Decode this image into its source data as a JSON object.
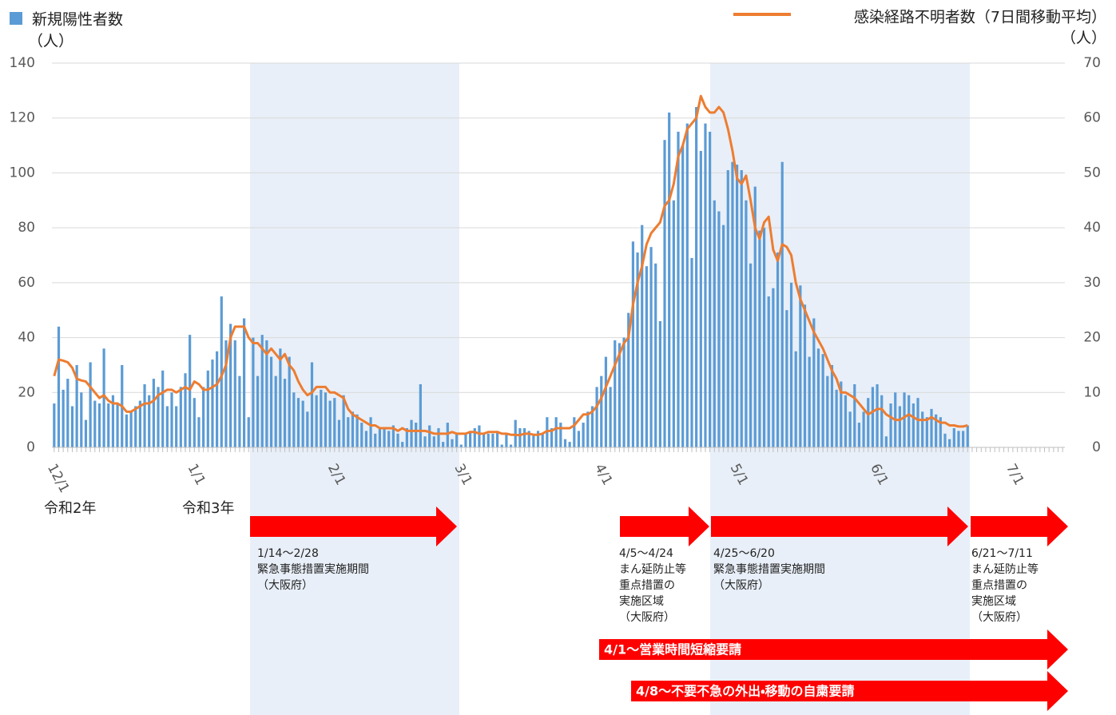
{
  "chart_data": {
    "type": "bar",
    "categories": [
      "12/1",
      null,
      null,
      null,
      null,
      null,
      null,
      null,
      null,
      null,
      null,
      null,
      null,
      null,
      null,
      null,
      null,
      null,
      null,
      null,
      null,
      null,
      null,
      null,
      null,
      null,
      null,
      null,
      null,
      null,
      null,
      "1/1",
      null,
      null,
      null,
      null,
      null,
      null,
      null,
      null,
      null,
      null,
      null,
      null,
      null,
      null,
      null,
      null,
      null,
      null,
      null,
      null,
      null,
      null,
      null,
      null,
      null,
      null,
      null,
      null,
      null,
      null,
      "2/1",
      null,
      null,
      null,
      null,
      null,
      null,
      null,
      null,
      null,
      null,
      null,
      null,
      null,
      null,
      null,
      null,
      null,
      null,
      null,
      null,
      null,
      null,
      null,
      null,
      null,
      null,
      null,
      "3/1",
      null,
      null,
      null,
      null,
      null,
      null,
      null,
      null,
      null,
      null,
      null,
      null,
      null,
      null,
      null,
      null,
      null,
      null,
      null,
      null,
      null,
      null,
      null,
      null,
      null,
      null,
      null,
      null,
      null,
      null,
      "4/1",
      null,
      null,
      null,
      null,
      null,
      null,
      null,
      null,
      null,
      null,
      null,
      null,
      null,
      null,
      null,
      null,
      null,
      null,
      null,
      null,
      null,
      null,
      null,
      null,
      null,
      null,
      null,
      null,
      null,
      "5/1",
      null,
      null,
      null,
      null,
      null,
      null,
      null,
      null,
      null,
      null,
      null,
      null,
      null,
      null,
      null,
      null,
      null,
      null,
      null,
      null,
      null,
      null,
      null,
      null,
      null,
      null,
      null,
      null,
      null,
      null,
      "6/1",
      null,
      null,
      null,
      null,
      null,
      null,
      null,
      null,
      null,
      null,
      null,
      null,
      null,
      null,
      null,
      null,
      null,
      null,
      null,
      null,
      null,
      null,
      null,
      null,
      null,
      null,
      null,
      null,
      null,
      "7/1",
      null,
      null,
      null,
      null,
      null,
      null,
      null,
      null,
      null,
      null,
      null
    ],
    "series": [
      {
        "name": "新規陽性者数",
        "type": "bar",
        "color": "#5b9bd5",
        "values": [
          16,
          44,
          21,
          25,
          15,
          30,
          20,
          10,
          31,
          17,
          16,
          36,
          16,
          19,
          16,
          30,
          12,
          13,
          15,
          17,
          23,
          19,
          25,
          22,
          28,
          15,
          20,
          15,
          22,
          27,
          41,
          18,
          11,
          22,
          28,
          32,
          35,
          55,
          39,
          45,
          39,
          26,
          47,
          11,
          40,
          26,
          41,
          39,
          33,
          26,
          36,
          25,
          33,
          20,
          18,
          17,
          13,
          31,
          19,
          21,
          20,
          17,
          18,
          10,
          19,
          11,
          13,
          12,
          9,
          6,
          11,
          5,
          7,
          7,
          6,
          8,
          5,
          2,
          7,
          10,
          9,
          23,
          4,
          8,
          4,
          7,
          2,
          9,
          3,
          5,
          1,
          5,
          6,
          7,
          8,
          5,
          5,
          5,
          6,
          1,
          5,
          1,
          10,
          7,
          7,
          6,
          5,
          6,
          5,
          11,
          7,
          11,
          9,
          3,
          2,
          11,
          6,
          9,
          13,
          15,
          22,
          26,
          33,
          22,
          39,
          38,
          40,
          49,
          75,
          71,
          81,
          66,
          73,
          67,
          46,
          112,
          122,
          90,
          115,
          110,
          118,
          69,
          124,
          108,
          118,
          115,
          90,
          86,
          81,
          101,
          104,
          103,
          101,
          90,
          67,
          95,
          79,
          80,
          55,
          58,
          71,
          104,
          50,
          60,
          35,
          59,
          52,
          33,
          47,
          36,
          34,
          26,
          30,
          21,
          24,
          19,
          13,
          23,
          9,
          13,
          18,
          22,
          23,
          19,
          4,
          16,
          20,
          15,
          20,
          19,
          16,
          18,
          13,
          11,
          14,
          12,
          11,
          5,
          3,
          7,
          6,
          6,
          8,
          null,
          null,
          null,
          null,
          null,
          null,
          null,
          null,
          null,
          null,
          null,
          null,
          null,
          null,
          null,
          null,
          null,
          null,
          null,
          null,
          null
        ]
      },
      {
        "name": "感染経路不明者数（7日間移動平均）",
        "type": "line",
        "axis": "y2",
        "color": "#ed7d31",
        "values": [
          13,
          16,
          15.8,
          15.5,
          14.5,
          12.5,
          12.2,
          12,
          11,
          10,
          9,
          9.5,
          8.5,
          8,
          8,
          7.5,
          6.5,
          6.5,
          7,
          7.5,
          8,
          8,
          8.5,
          9.5,
          10,
          10.5,
          10.5,
          10,
          10.5,
          11,
          10.5,
          12,
          11.5,
          10.5,
          10.5,
          11,
          11.5,
          13,
          15,
          20,
          22,
          22,
          22,
          20,
          19,
          19,
          18,
          17,
          18,
          17,
          16,
          17,
          15,
          14,
          12,
          10.5,
          9.5,
          10,
          11,
          11,
          11,
          10,
          10,
          9.5,
          9,
          7,
          6,
          5.5,
          5,
          4.5,
          4,
          4,
          3.5,
          3.5,
          3.5,
          3.5,
          3,
          3.5,
          3,
          3,
          3,
          3,
          3,
          2.8,
          2.5,
          2.5,
          2.5,
          2.5,
          2.8,
          2.5,
          2.5,
          2.5,
          2.8,
          2.8,
          2.5,
          2.5,
          2.8,
          2.8,
          2.8,
          2.5,
          2.5,
          2.3,
          2.3,
          2.2,
          2.5,
          2.5,
          2.3,
          2.3,
          2.5,
          3,
          3,
          3.5,
          3.5,
          3.5,
          3.5,
          4,
          5,
          6,
          6,
          6.5,
          7.5,
          9,
          11,
          13,
          15,
          17,
          19,
          20,
          26,
          30,
          33,
          37,
          39,
          40,
          41,
          44,
          45,
          48,
          53,
          55,
          58,
          59,
          60,
          64,
          62,
          61,
          61,
          62,
          61,
          58,
          54,
          49,
          48,
          49.5,
          45,
          40,
          38,
          41,
          42,
          36,
          34,
          37,
          36.5,
          35,
          30,
          27,
          25,
          23,
          21,
          19.5,
          18,
          16,
          14,
          12.5,
          10,
          10,
          9.5,
          9,
          8,
          7,
          6,
          6.5,
          7,
          7,
          6,
          5.5,
          5,
          5,
          5.5,
          6,
          5.5,
          5,
          5,
          5,
          5.5,
          5,
          4.5,
          4.5,
          4,
          4,
          3.8,
          3.8,
          4,
          null,
          null,
          null,
          null,
          null,
          null,
          null,
          null,
          null,
          null,
          null,
          null,
          null,
          null,
          null,
          null,
          null,
          null,
          null,
          null,
          null
        ]
      }
    ],
    "y_label": "（人）",
    "y2_label": "（人）",
    "ylim": [
      0,
      140
    ],
    "yticks": [
      0,
      20,
      40,
      60,
      80,
      100,
      120,
      140
    ],
    "y2lim": [
      0,
      70
    ],
    "y2ticks": [
      0,
      10,
      20,
      30,
      40,
      50,
      60,
      70
    ],
    "grid": true,
    "era_labels": [
      "令和2年",
      "令和3年"
    ],
    "periods": [
      {
        "lines": [
          "1/14～2/28",
          "緊急事態措置実施期間",
          "（大阪府）"
        ]
      },
      {
        "lines": [
          "4/5～4/24",
          "まん延防止等",
          "重点措置の",
          "実施区域",
          "（大阪府）"
        ]
      },
      {
        "lines": [
          "4/25～6/20",
          "緊急事態措置実施期間",
          "（大阪府）"
        ]
      },
      {
        "lines": [
          "6/21～7/11",
          "まん延防止等",
          "重点措置の",
          "実施区域",
          "（大阪府）"
        ]
      }
    ],
    "requests": [
      "4/1～営業時間短縮要請",
      "4/8～不要不急の外出・移動の自粛要請"
    ]
  }
}
